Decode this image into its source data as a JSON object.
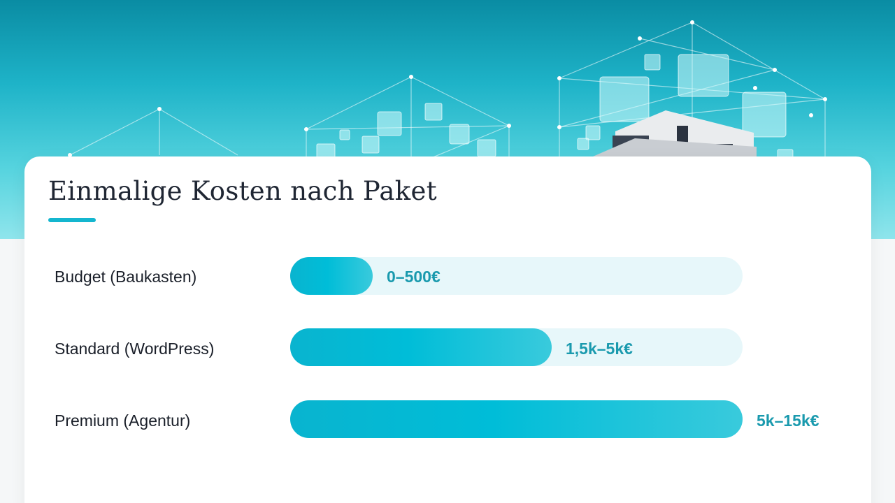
{
  "colors": {
    "accent": "#14b6cf",
    "bar_fill": "#00bdd8",
    "track": "#e7f7fa",
    "value_text": "#1a9aae"
  },
  "chart_data": {
    "type": "bar",
    "orientation": "horizontal",
    "title": "Einmalige Kosten nach Paket",
    "categories": [
      "Budget (Baukasten)",
      "Standard (WordPress)",
      "Premium (Agentur)"
    ],
    "value_labels": [
      "0–500€",
      "1,5k–5k€",
      "5k–15k€"
    ],
    "ranges_eur": [
      [
        0,
        500
      ],
      [
        1500,
        5000
      ],
      [
        5000,
        15000
      ]
    ],
    "values": [
      500,
      5000,
      15000
    ],
    "xlim": [
      0,
      15000
    ],
    "grid": false,
    "legend": false
  }
}
